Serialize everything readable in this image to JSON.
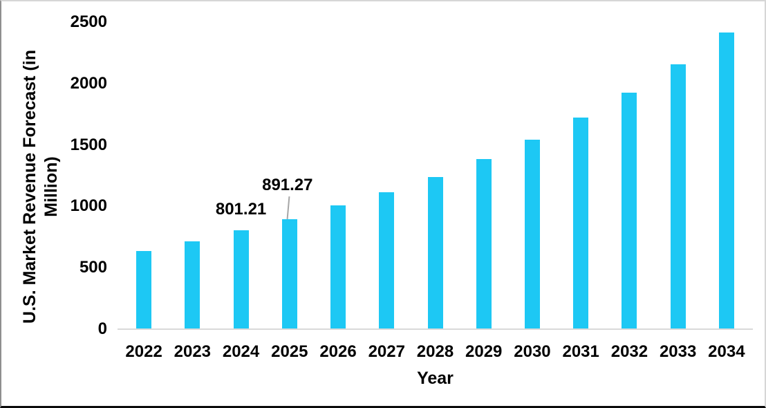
{
  "chart_data": {
    "type": "bar",
    "title": "",
    "xlabel": "Year",
    "ylabel": "U.S. Market Revenue Forecast (in Million)",
    "ylabel_lines": [
      "U.S. Market Revenue Forecast (in",
      "Million)"
    ],
    "categories": [
      "2022",
      "2023",
      "2024",
      "2025",
      "2026",
      "2027",
      "2028",
      "2029",
      "2030",
      "2031",
      "2032",
      "2033",
      "2034"
    ],
    "values": [
      630,
      710,
      801.21,
      891.27,
      1000,
      1110,
      1235,
      1380,
      1540,
      1720,
      1920,
      2150,
      2410
    ],
    "annotations": [
      {
        "category": "2024",
        "text": "801.21",
        "leader": false
      },
      {
        "category": "2025",
        "text": "891.27",
        "leader": true
      }
    ],
    "yticks": [
      0,
      500,
      1000,
      1500,
      2000,
      2500
    ],
    "ylim": [
      0,
      2500
    ],
    "grid": false,
    "legend": false,
    "colors": {
      "bar": "#1DC8F4",
      "axis_line": "#D9D9D9",
      "leader_line": "#A6A6A6",
      "text": "#000000",
      "background": "#FFFFFF"
    }
  }
}
